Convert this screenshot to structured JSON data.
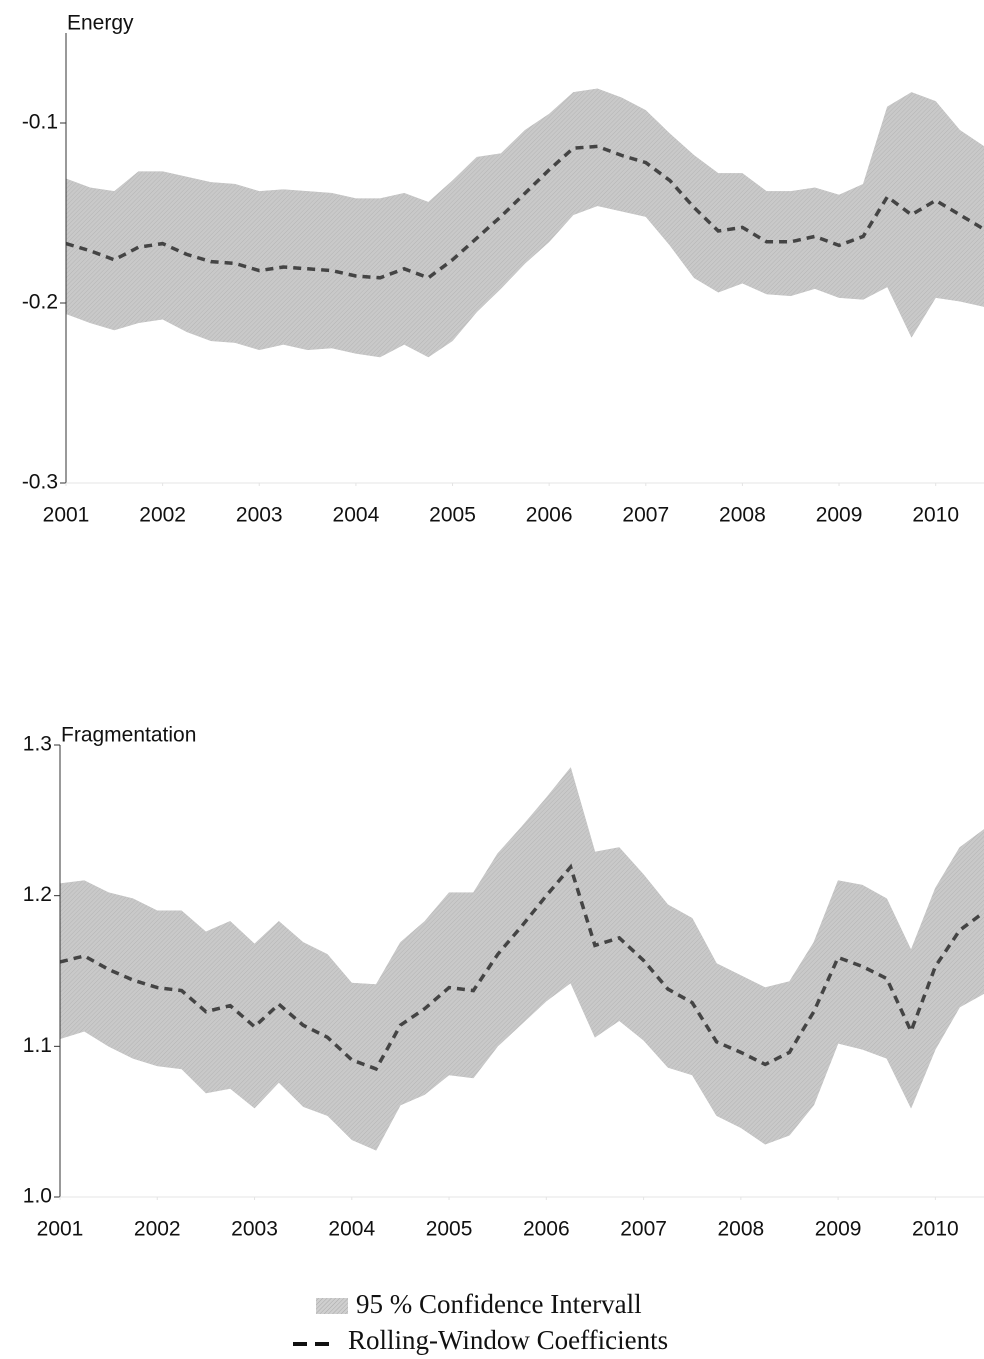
{
  "chart_data": [
    {
      "type": "band-line",
      "title": "Energy",
      "x": [
        2001,
        2001.25,
        2001.5,
        2001.75,
        2002,
        2002.25,
        2002.5,
        2002.75,
        2003,
        2003.25,
        2003.5,
        2003.75,
        2004,
        2004.25,
        2004.5,
        2004.75,
        2005,
        2005.25,
        2005.5,
        2005.75,
        2006,
        2006.25,
        2006.5,
        2006.75,
        2007,
        2007.25,
        2007.5,
        2007.75,
        2008,
        2008.25,
        2008.5,
        2008.75,
        2009,
        2009.25,
        2009.5,
        2009.75,
        2010,
        2010.25,
        2010.5
      ],
      "values": [
        -0.167,
        -0.171,
        -0.176,
        -0.169,
        -0.167,
        -0.173,
        -0.177,
        -0.178,
        -0.182,
        -0.18,
        -0.181,
        -0.182,
        -0.185,
        -0.186,
        -0.181,
        -0.186,
        -0.176,
        -0.164,
        -0.152,
        -0.139,
        -0.126,
        -0.114,
        -0.113,
        -0.118,
        -0.122,
        -0.132,
        -0.147,
        -0.16,
        -0.158,
        -0.166,
        -0.166,
        -0.163,
        -0.168,
        -0.163,
        -0.141,
        -0.151,
        -0.143,
        -0.151,
        -0.159
      ],
      "upper": [
        -0.131,
        -0.136,
        -0.138,
        -0.127,
        -0.127,
        -0.13,
        -0.133,
        -0.134,
        -0.138,
        -0.137,
        -0.138,
        -0.139,
        -0.142,
        -0.142,
        -0.139,
        -0.144,
        -0.132,
        -0.119,
        -0.117,
        -0.104,
        -0.095,
        -0.083,
        -0.081,
        -0.086,
        -0.093,
        -0.106,
        -0.118,
        -0.128,
        -0.128,
        -0.138,
        -0.138,
        -0.136,
        -0.14,
        -0.134,
        -0.091,
        -0.083,
        -0.088,
        -0.104,
        -0.113
      ],
      "lower": [
        -0.206,
        -0.211,
        -0.215,
        -0.211,
        -0.209,
        -0.216,
        -0.221,
        -0.222,
        -0.226,
        -0.223,
        -0.226,
        -0.225,
        -0.228,
        -0.23,
        -0.223,
        -0.23,
        -0.221,
        -0.205,
        -0.192,
        -0.178,
        -0.166,
        -0.151,
        -0.146,
        -0.149,
        -0.152,
        -0.168,
        -0.186,
        -0.194,
        -0.189,
        -0.195,
        -0.196,
        -0.192,
        -0.197,
        -0.198,
        -0.191,
        -0.219,
        -0.197,
        -0.199,
        -0.202
      ],
      "xlim": [
        2001,
        2010.5
      ],
      "xticks": [
        2001,
        2002,
        2003,
        2004,
        2005,
        2006,
        2007,
        2008,
        2009,
        2010
      ],
      "ylim": [
        -0.3,
        -0.05
      ],
      "yticks": [
        -0.3,
        -0.2,
        -0.1
      ],
      "line_color": "#444444",
      "band_color": "#c2c2c2"
    },
    {
      "type": "band-line",
      "title": "Fragmentation",
      "x": [
        2001,
        2001.25,
        2001.5,
        2001.75,
        2002,
        2002.25,
        2002.5,
        2002.75,
        2003,
        2003.25,
        2003.5,
        2003.75,
        2004,
        2004.25,
        2004.5,
        2004.75,
        2005,
        2005.25,
        2005.5,
        2005.75,
        2006,
        2006.25,
        2006.5,
        2006.75,
        2007,
        2007.25,
        2007.5,
        2007.75,
        2008,
        2008.25,
        2008.5,
        2008.75,
        2009,
        2009.25,
        2009.5,
        2009.75,
        2010,
        2010.25,
        2010.5
      ],
      "values": [
        1.156,
        1.16,
        1.151,
        1.144,
        1.139,
        1.137,
        1.123,
        1.127,
        1.113,
        1.128,
        1.114,
        1.106,
        1.091,
        1.085,
        1.114,
        1.125,
        1.139,
        1.137,
        1.161,
        1.18,
        1.2,
        1.219,
        1.167,
        1.172,
        1.157,
        1.138,
        1.129,
        1.103,
        1.096,
        1.088,
        1.096,
        1.123,
        1.159,
        1.153,
        1.145,
        1.11,
        1.153,
        1.177,
        1.189
      ],
      "upper": [
        1.208,
        1.21,
        1.202,
        1.198,
        1.19,
        1.19,
        1.176,
        1.183,
        1.168,
        1.183,
        1.169,
        1.161,
        1.142,
        1.141,
        1.169,
        1.183,
        1.202,
        1.202,
        1.228,
        1.246,
        1.265,
        1.285,
        1.229,
        1.232,
        1.214,
        1.194,
        1.185,
        1.155,
        1.147,
        1.139,
        1.143,
        1.169,
        1.21,
        1.207,
        1.198,
        1.164,
        1.205,
        1.232,
        1.244
      ],
      "lower": [
        1.105,
        1.11,
        1.1,
        1.092,
        1.087,
        1.085,
        1.069,
        1.072,
        1.059,
        1.076,
        1.06,
        1.054,
        1.038,
        1.031,
        1.061,
        1.068,
        1.081,
        1.079,
        1.1,
        1.115,
        1.13,
        1.142,
        1.106,
        1.117,
        1.104,
        1.086,
        1.081,
        1.054,
        1.046,
        1.035,
        1.041,
        1.061,
        1.102,
        1.098,
        1.092,
        1.059,
        1.098,
        1.126,
        1.135
      ],
      "xlim": [
        2001,
        2010.5
      ],
      "xticks": [
        2001,
        2002,
        2003,
        2004,
        2005,
        2006,
        2007,
        2008,
        2009,
        2010
      ],
      "ylim": [
        1,
        1.3
      ],
      "yticks": [
        {
          "value": 1,
          "label": "1.0"
        },
        1.1,
        1.2,
        1.3
      ],
      "line_color": "#444444",
      "band_color": "#c2c2c2"
    }
  ],
  "legend": [
    "95 % Confidence Intervall",
    "Rolling-Window Coefficients"
  ]
}
